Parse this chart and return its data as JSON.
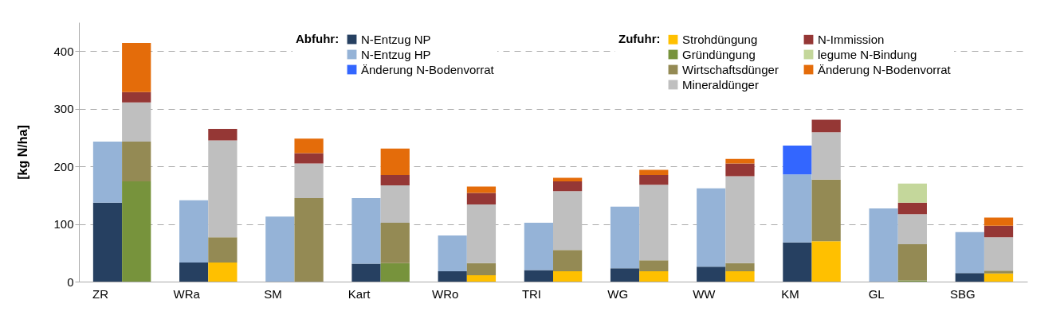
{
  "chart_data": {
    "type": "bar",
    "stacked": true,
    "ylabel": "[kg N/ha]",
    "categories": [
      "ZR",
      null,
      "WRa",
      null,
      "SM",
      null,
      "Kart",
      null,
      "WRo",
      null,
      "TRI",
      null,
      "WG",
      null,
      "WW",
      null,
      "KM",
      null,
      "GL",
      null,
      "SBG",
      null
    ],
    "series": [
      {
        "name": "N-Entzug NP",
        "color": "#264061",
        "values": [
          137,
          null,
          33,
          null,
          null,
          null,
          31,
          null,
          18,
          null,
          20,
          null,
          23,
          null,
          26,
          null,
          68,
          null,
          null,
          null,
          15,
          null
        ]
      },
      {
        "name": "N-Entzug HP",
        "color": "#95b3d7",
        "values": [
          106,
          null,
          108,
          null,
          113,
          null,
          114,
          null,
          62,
          null,
          82,
          null,
          107,
          null,
          136,
          null,
          118,
          null,
          127,
          null,
          71,
          null
        ]
      },
      {
        "name": "Änderung N-Bodenvorrat",
        "color": "#3366ff",
        "values": [
          null,
          null,
          null,
          null,
          null,
          null,
          null,
          null,
          null,
          null,
          null,
          null,
          null,
          null,
          null,
          null,
          50,
          null,
          null,
          null,
          null,
          null
        ]
      },
      {
        "name": "Strohdüngung",
        "color": "#ffc000",
        "values": [
          null,
          null,
          null,
          33,
          null,
          null,
          null,
          null,
          null,
          11,
          null,
          18,
          null,
          18,
          null,
          18,
          null,
          70,
          null,
          null,
          null,
          14
        ]
      },
      {
        "name": "Gründüngung",
        "color": "#77933c",
        "values": [
          null,
          174,
          null,
          null,
          null,
          null,
          null,
          32,
          null,
          null,
          null,
          null,
          null,
          null,
          null,
          null,
          null,
          null,
          null,
          2,
          null,
          null
        ]
      },
      {
        "name": "Wirtschaftsdünger",
        "color": "#948a54",
        "values": [
          null,
          69,
          null,
          44,
          null,
          145,
          null,
          70,
          null,
          21,
          null,
          37,
          null,
          19,
          null,
          14,
          null,
          107,
          null,
          63,
          null,
          5
        ]
      },
      {
        "name": "Mineraldünger",
        "color": "#bfbfbf",
        "values": [
          null,
          68,
          null,
          168,
          null,
          60,
          null,
          65,
          null,
          102,
          null,
          102,
          null,
          131,
          null,
          151,
          null,
          82,
          null,
          52,
          null,
          58
        ]
      },
      {
        "name": "N-Immission",
        "color": "#953735",
        "values": [
          null,
          18,
          null,
          20,
          null,
          18,
          null,
          18,
          null,
          20,
          null,
          17,
          null,
          17,
          null,
          22,
          null,
          22,
          null,
          20,
          null,
          20
        ]
      },
      {
        "name": "legume N-Bindung",
        "color": "#c4d79b",
        "values": [
          null,
          null,
          null,
          null,
          null,
          null,
          null,
          null,
          null,
          null,
          null,
          null,
          null,
          null,
          null,
          null,
          null,
          null,
          null,
          33,
          null,
          null
        ]
      },
      {
        "name": "Änderung N-Bodenvorrat",
        "color": "#e46c0a",
        "values": [
          null,
          85,
          null,
          null,
          null,
          25,
          null,
          46,
          null,
          11,
          null,
          6,
          null,
          9,
          null,
          8,
          null,
          null,
          null,
          null,
          null,
          14
        ]
      }
    ],
    "annotations": [
      "Abfuhr:",
      "Zufuhr:"
    ],
    "ylim": [
      0,
      450
    ],
    "yticks": [
      0,
      100,
      200,
      300,
      400
    ],
    "grid": "y",
    "legend": "top"
  }
}
